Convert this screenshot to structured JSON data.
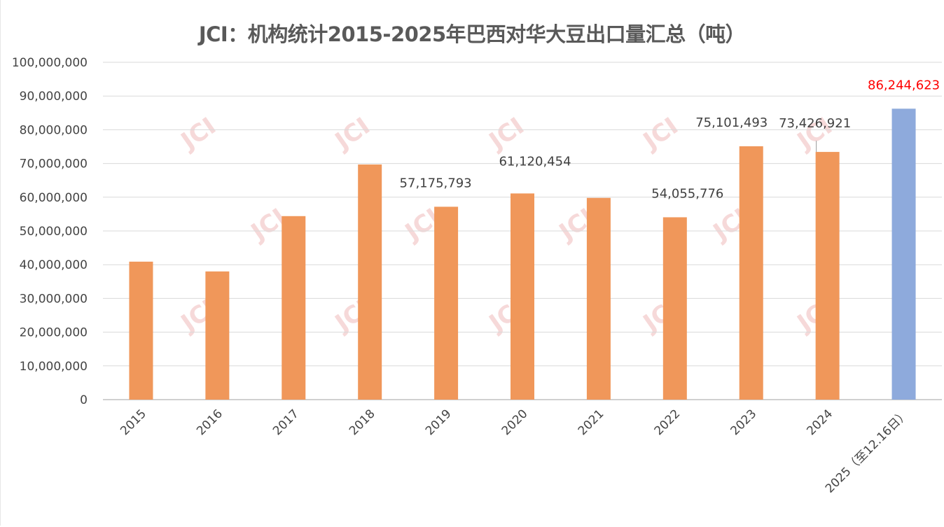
{
  "chart_data": {
    "type": "bar",
    "title": "JCI：机构统计2015-2025年巴西对华大豆出口量汇总（吨）",
    "xlabel": "",
    "ylabel": "",
    "ylim": [
      0,
      100000000
    ],
    "ytick_step": 10000000,
    "yticks": [
      "0",
      "10,000,000",
      "20,000,000",
      "30,000,000",
      "40,000,000",
      "50,000,000",
      "60,000,000",
      "70,000,000",
      "80,000,000",
      "90,000,000",
      "100,000,000"
    ],
    "grid": true,
    "legend": "none",
    "categories": [
      "2015",
      "2016",
      "2017",
      "2018",
      "2019",
      "2020",
      "2021",
      "2022",
      "2023",
      "2024",
      "2025（至12.16日）"
    ],
    "values": [
      40900000,
      38000000,
      54400000,
      69700000,
      57175793,
      61120454,
      59800000,
      54055776,
      75101493,
      73426921,
      86244623
    ],
    "data_labels": [
      null,
      null,
      null,
      null,
      "57,175,793",
      "61,120,454",
      null,
      "54,055,776",
      "75,101,493",
      "73,426,921",
      "86,244,623"
    ],
    "bar_colors": [
      "#f0975a",
      "#f0975a",
      "#f0975a",
      "#f0975a",
      "#f0975a",
      "#f0975a",
      "#f0975a",
      "#f0975a",
      "#f0975a",
      "#f0975a",
      "#8eaadc"
    ],
    "highlight_label_color": "#ff0000",
    "watermark": "JCI"
  }
}
